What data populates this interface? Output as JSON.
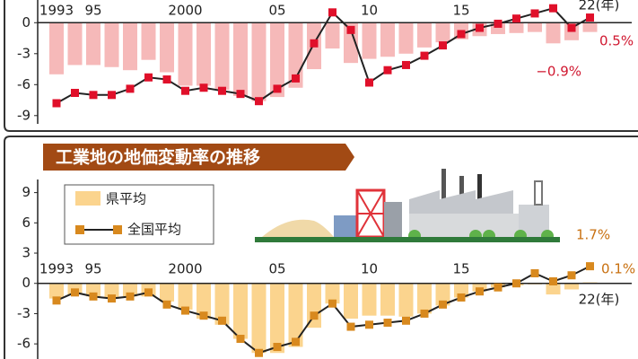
{
  "chart_data": [
    {
      "type": "bar_line",
      "categories": [
        "1993",
        null,
        "95",
        null,
        null,
        null,
        null,
        "2000",
        null,
        null,
        null,
        null,
        "05",
        null,
        null,
        null,
        null,
        "10",
        null,
        null,
        null,
        null,
        "15",
        null,
        null,
        null,
        null,
        null,
        null,
        "22(年)"
      ],
      "series": [
        {
          "type": "bar",
          "color": "#f6b9b9",
          "values": [
            -5.0,
            -4.1,
            -4.1,
            -4.3,
            -4.6,
            -3.6,
            -4.8,
            -6.1,
            -6.1,
            -6.5,
            -7.1,
            -7.6,
            -7.2,
            -6.3,
            -4.5,
            -2.5,
            -3.9,
            -3.5,
            -3.3,
            -3.0,
            -2.4,
            -1.9,
            -1.6,
            -1.3,
            -1.1,
            -1.0,
            -0.9,
            -2.0,
            -1.7,
            -0.9
          ],
          "value_labels": [
            null,
            null,
            null,
            null,
            null,
            null,
            null,
            null,
            null,
            null,
            null,
            null,
            null,
            null,
            null,
            null,
            null,
            null,
            null,
            null,
            null,
            null,
            null,
            null,
            null,
            null,
            null,
            null,
            null,
            "−0.9%"
          ]
        },
        {
          "type": "line",
          "color": "#e0102a",
          "values": [
            -7.8,
            -6.8,
            -7.0,
            -7.0,
            -6.4,
            -5.3,
            -5.5,
            -6.6,
            -6.3,
            -6.6,
            -6.9,
            -7.6,
            -6.4,
            -5.4,
            -2.0,
            1.0,
            -0.7,
            -5.8,
            -4.6,
            -4.1,
            -3.2,
            -2.2,
            -1.1,
            -0.5,
            -0.1,
            0.4,
            0.9,
            1.4,
            -0.5,
            0.5
          ],
          "value_labels": [
            null,
            null,
            null,
            null,
            null,
            null,
            null,
            null,
            null,
            null,
            null,
            null,
            null,
            null,
            null,
            null,
            null,
            null,
            null,
            null,
            null,
            null,
            null,
            null,
            null,
            null,
            null,
            null,
            null,
            "0.5%"
          ]
        }
      ],
      "ylim": [
        -9.8,
        2.2
      ],
      "yticks": [
        -9,
        -6,
        -3,
        0
      ]
    },
    {
      "type": "bar_line",
      "title": "工業地の地価変動率の推移",
      "categories": [
        "1993",
        null,
        "95",
        null,
        null,
        null,
        null,
        "2000",
        null,
        null,
        null,
        null,
        "05",
        null,
        null,
        null,
        null,
        "10",
        null,
        null,
        null,
        null,
        "15",
        null,
        null,
        null,
        null,
        null,
        null,
        "22(年)"
      ],
      "series": [
        {
          "type": "bar",
          "name": "県平均",
          "color": "#fbd48e",
          "values": [
            -1.5,
            -1.1,
            -1.3,
            -1.5,
            -1.3,
            -1.3,
            -1.8,
            -2.6,
            -3.5,
            -4.1,
            -5.5,
            -6.9,
            -6.9,
            -6.3,
            -4.4,
            -2.0,
            -3.5,
            -3.2,
            -3.2,
            -3.3,
            -3.0,
            -2.2,
            -1.4,
            -0.8,
            -0.4,
            -0.2,
            -0.1,
            -1.1,
            -0.6,
            0.1
          ],
          "value_labels": [
            null,
            null,
            null,
            null,
            null,
            null,
            null,
            null,
            null,
            null,
            null,
            null,
            null,
            null,
            null,
            null,
            null,
            null,
            null,
            null,
            null,
            null,
            null,
            null,
            null,
            null,
            null,
            null,
            null,
            "0.1%"
          ]
        },
        {
          "type": "line",
          "name": "全国平均",
          "color": "#d8891e",
          "values": [
            -1.7,
            -0.9,
            -1.3,
            -1.5,
            -1.3,
            -0.9,
            -2.1,
            -2.7,
            -3.2,
            -3.7,
            -5.5,
            -6.9,
            -6.3,
            -5.8,
            -3.2,
            -2.0,
            -4.3,
            -4.1,
            -3.9,
            -3.7,
            -3.0,
            -2.1,
            -1.4,
            -0.8,
            -0.4,
            0.0,
            1.0,
            0.2,
            0.8,
            1.7
          ],
          "value_labels": [
            null,
            null,
            null,
            null,
            null,
            null,
            null,
            null,
            null,
            null,
            null,
            null,
            null,
            null,
            null,
            null,
            null,
            null,
            null,
            null,
            null,
            null,
            null,
            null,
            null,
            null,
            null,
            null,
            null,
            "1.7%"
          ]
        }
      ],
      "ylim": [
        -7.5,
        10.3
      ],
      "yticks": [
        -6,
        -3,
        0,
        3,
        6,
        9
      ]
    }
  ]
}
